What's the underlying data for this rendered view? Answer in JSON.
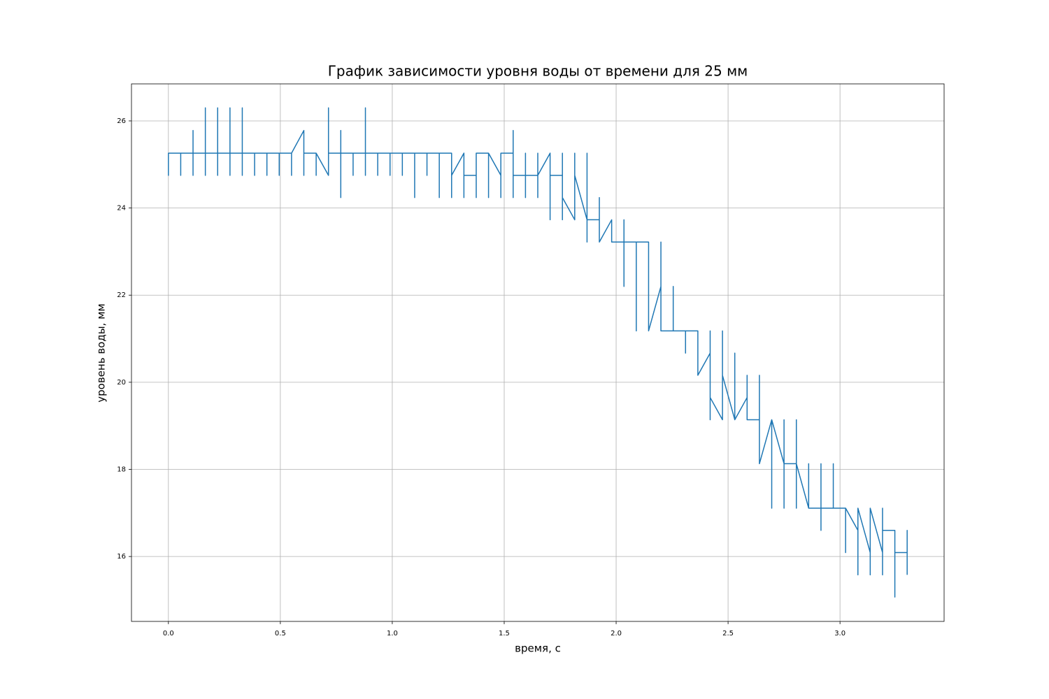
{
  "chart_data": {
    "type": "line",
    "title": "График зависимости уровня воды от времени для 25 мм",
    "x_label": "время, с",
    "y_label": "уровень воды, мм",
    "grid": true,
    "xlim": [
      -0.165,
      3.465
    ],
    "ylim": [
      14.51,
      26.85
    ],
    "xticks": [
      {
        "value": 0,
        "label": "0.0"
      },
      {
        "value": 0.5,
        "label": "0.5"
      },
      {
        "value": 1,
        "label": "1.0"
      },
      {
        "value": 1.5,
        "label": "1.5"
      },
      {
        "value": 2,
        "label": "2.0"
      },
      {
        "value": 2.5,
        "label": "2.5"
      },
      {
        "value": 3,
        "label": "3.0"
      }
    ],
    "yticks": [
      16,
      18,
      20,
      22,
      24,
      26
    ],
    "series": [
      {
        "color": "#1f77b4",
        "x": [
          0,
          0,
          0,
          0.055,
          0.055,
          0.055,
          0.11,
          0.11,
          0.11,
          0.11,
          0.165,
          0.165,
          0.165,
          0.165,
          0.22,
          0.22,
          0.22,
          0.22,
          0.275,
          0.275,
          0.275,
          0.275,
          0.33,
          0.33,
          0.33,
          0.33,
          0.385,
          0.385,
          0.385,
          0.44,
          0.44,
          0.44,
          0.495,
          0.495,
          0.495,
          0.55,
          0.55,
          0.55,
          0.605,
          0.605,
          0.605,
          0.66,
          0.66,
          0.66,
          0.715,
          0.715,
          0.715,
          0.77,
          0.77,
          0.77,
          0.77,
          0.825,
          0.825,
          0.825,
          0.88,
          0.88,
          0.88,
          0.88,
          0.935,
          0.935,
          0.935,
          0.99,
          0.99,
          0.99,
          1.045,
          1.045,
          1.045,
          1.1,
          1.1,
          1.1,
          1.155,
          1.155,
          1.155,
          1.21,
          1.21,
          1.21,
          1.265,
          1.265,
          1.265,
          1.32,
          1.32,
          1.32,
          1.375,
          1.375,
          1.375,
          1.43,
          1.43,
          1.43,
          1.485,
          1.485,
          1.485,
          1.54,
          1.54,
          1.54,
          1.54,
          1.595,
          1.595,
          1.595,
          1.595,
          1.65,
          1.65,
          1.65,
          1.65,
          1.705,
          1.705,
          1.705,
          1.76,
          1.76,
          1.76,
          1.76,
          1.815,
          1.815,
          1.815,
          1.87,
          1.87,
          1.87,
          1.87,
          1.925,
          1.925,
          1.925,
          1.98,
          1.98,
          2.035,
          2.035,
          2.035,
          2.035,
          2.09,
          2.09,
          2.09,
          2.145,
          2.145,
          2.2,
          2.2,
          2.2,
          2.255,
          2.255,
          2.255,
          2.31,
          2.31,
          2.31,
          2.365,
          2.365,
          2.42,
          2.42,
          2.42,
          2.42,
          2.475,
          2.475,
          2.475,
          2.53,
          2.53,
          2.53,
          2.585,
          2.585,
          2.585,
          2.64,
          2.64,
          2.64,
          2.695,
          2.695,
          2.695,
          2.75,
          2.75,
          2.75,
          2.75,
          2.805,
          2.805,
          2.805,
          2.805,
          2.86,
          2.86,
          2.86,
          2.915,
          2.915,
          2.915,
          2.915,
          2.97,
          2.97,
          2.97,
          3.025,
          3.025,
          3.025,
          3.08,
          3.08,
          3.08,
          3.08,
          3.135,
          3.135,
          3.135,
          3.135,
          3.19,
          3.19,
          3.19,
          3.19,
          3.245,
          3.245,
          3.245,
          3.3,
          3.3,
          3.3
        ],
        "values": [
          25.26,
          24.75,
          25.26,
          25.26,
          24.75,
          25.26,
          25.26,
          25.78,
          24.75,
          25.26,
          25.26,
          26.3,
          24.75,
          25.26,
          25.26,
          26.3,
          24.75,
          25.26,
          25.26,
          26.3,
          24.75,
          25.26,
          25.26,
          26.3,
          24.75,
          25.26,
          25.26,
          24.75,
          25.26,
          25.26,
          24.75,
          25.26,
          25.26,
          24.75,
          25.26,
          25.26,
          24.75,
          25.26,
          25.78,
          24.75,
          25.26,
          25.26,
          24.75,
          25.26,
          24.75,
          26.3,
          25.26,
          25.26,
          25.78,
          24.24,
          25.26,
          25.26,
          24.75,
          25.26,
          25.26,
          26.3,
          24.75,
          25.26,
          25.26,
          24.75,
          25.26,
          25.26,
          24.75,
          25.26,
          25.26,
          24.75,
          25.26,
          25.26,
          24.24,
          25.26,
          25.26,
          24.75,
          25.26,
          25.26,
          24.24,
          25.26,
          25.26,
          24.24,
          24.75,
          25.26,
          24.24,
          24.75,
          24.75,
          24.24,
          25.26,
          25.26,
          24.24,
          25.26,
          24.75,
          24.24,
          25.26,
          25.26,
          25.78,
          24.24,
          24.75,
          24.75,
          24.24,
          25.26,
          24.75,
          24.75,
          24.24,
          25.26,
          24.75,
          25.26,
          23.73,
          24.75,
          24.75,
          25.26,
          23.73,
          24.24,
          23.73,
          25.26,
          24.75,
          23.73,
          25.26,
          23.22,
          23.73,
          23.73,
          24.24,
          23.22,
          23.73,
          23.22,
          23.22,
          23.73,
          22.2,
          23.22,
          23.22,
          21.18,
          23.22,
          23.22,
          21.18,
          22.2,
          23.22,
          21.18,
          21.18,
          22.2,
          21.18,
          21.18,
          20.67,
          21.18,
          21.18,
          20.16,
          20.67,
          21.18,
          19.14,
          19.65,
          19.14,
          21.18,
          20.16,
          19.14,
          20.67,
          19.14,
          19.65,
          20.16,
          19.14,
          19.14,
          20.16,
          18.13,
          19.14,
          17.11,
          19.14,
          18.13,
          19.14,
          17.11,
          18.13,
          18.13,
          19.14,
          17.11,
          18.13,
          17.11,
          18.13,
          17.11,
          17.11,
          16.6,
          18.13,
          17.11,
          17.11,
          18.13,
          17.11,
          17.11,
          16.09,
          17.11,
          16.6,
          17.11,
          15.58,
          17.11,
          16.09,
          17.11,
          15.58,
          17.11,
          16.09,
          17.11,
          15.58,
          16.6,
          16.6,
          15.07,
          16.09,
          16.09,
          16.6,
          15.58
        ]
      }
    ]
  }
}
